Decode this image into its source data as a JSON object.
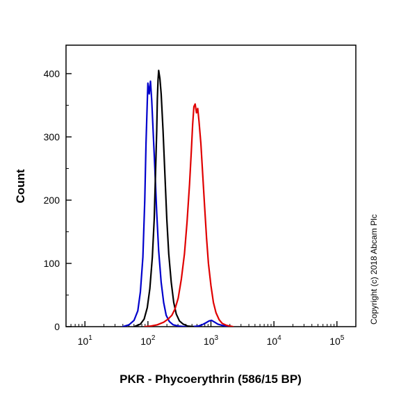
{
  "copyright": "Copyright (c) 2018 Abcam Plc",
  "chart_data": {
    "type": "line",
    "title": "",
    "xlabel": "PKR - Phycoerythrin (586/15 BP)",
    "ylabel": "Count",
    "x_scale": "log10",
    "xlim_log": [
      0.7,
      5.3
    ],
    "ylim": [
      0,
      445
    ],
    "yticks": [
      0,
      100,
      200,
      300,
      400
    ],
    "y_minor_step": 50,
    "xticks_exponents": [
      1,
      2,
      3,
      4,
      5
    ],
    "grid": false,
    "legend": "none",
    "series": [
      {
        "name": "blue",
        "color": "#0000cc",
        "points": [
          [
            1.6,
            0
          ],
          [
            1.7,
            3
          ],
          [
            1.78,
            10
          ],
          [
            1.84,
            25
          ],
          [
            1.88,
            55
          ],
          [
            1.92,
            110
          ],
          [
            1.95,
            200
          ],
          [
            1.97,
            290
          ],
          [
            1.99,
            355
          ],
          [
            2.0,
            385
          ],
          [
            2.02,
            368
          ],
          [
            2.04,
            388
          ],
          [
            2.06,
            358
          ],
          [
            2.08,
            315
          ],
          [
            2.11,
            250
          ],
          [
            2.14,
            180
          ],
          [
            2.17,
            120
          ],
          [
            2.21,
            70
          ],
          [
            2.25,
            38
          ],
          [
            2.29,
            18
          ],
          [
            2.34,
            8
          ],
          [
            2.4,
            3
          ],
          [
            2.48,
            1
          ],
          [
            2.58,
            0
          ],
          [
            2.7,
            0
          ],
          [
            2.8,
            1
          ],
          [
            2.86,
            3
          ],
          [
            2.92,
            6
          ],
          [
            2.97,
            9
          ],
          [
            3.01,
            10
          ],
          [
            3.06,
            7
          ],
          [
            3.11,
            4
          ],
          [
            3.18,
            2
          ],
          [
            3.28,
            0
          ]
        ]
      },
      {
        "name": "black",
        "color": "#000000",
        "points": [
          [
            1.78,
            0
          ],
          [
            1.88,
            4
          ],
          [
            1.94,
            12
          ],
          [
            1.99,
            30
          ],
          [
            2.03,
            60
          ],
          [
            2.07,
            110
          ],
          [
            2.1,
            170
          ],
          [
            2.12,
            240
          ],
          [
            2.14,
            310
          ],
          [
            2.15,
            360
          ],
          [
            2.16,
            390
          ],
          [
            2.17,
            405
          ],
          [
            2.19,
            392
          ],
          [
            2.21,
            368
          ],
          [
            2.24,
            310
          ],
          [
            2.27,
            240
          ],
          [
            2.3,
            170
          ],
          [
            2.33,
            115
          ],
          [
            2.37,
            70
          ],
          [
            2.41,
            38
          ],
          [
            2.45,
            20
          ],
          [
            2.5,
            9
          ],
          [
            2.56,
            4
          ],
          [
            2.63,
            1
          ],
          [
            2.72,
            0
          ]
        ]
      },
      {
        "name": "red",
        "color": "#e00000",
        "points": [
          [
            1.95,
            0
          ],
          [
            2.05,
            1
          ],
          [
            2.15,
            3
          ],
          [
            2.25,
            7
          ],
          [
            2.32,
            12
          ],
          [
            2.38,
            18
          ],
          [
            2.43,
            28
          ],
          [
            2.48,
            45
          ],
          [
            2.53,
            75
          ],
          [
            2.58,
            115
          ],
          [
            2.62,
            165
          ],
          [
            2.66,
            225
          ],
          [
            2.69,
            280
          ],
          [
            2.71,
            320
          ],
          [
            2.73,
            348
          ],
          [
            2.75,
            352
          ],
          [
            2.77,
            338
          ],
          [
            2.79,
            345
          ],
          [
            2.81,
            325
          ],
          [
            2.84,
            290
          ],
          [
            2.87,
            240
          ],
          [
            2.9,
            190
          ],
          [
            2.93,
            140
          ],
          [
            2.96,
            100
          ],
          [
            3.0,
            65
          ],
          [
            3.04,
            38
          ],
          [
            3.08,
            22
          ],
          [
            3.13,
            11
          ],
          [
            3.18,
            5
          ],
          [
            3.25,
            2
          ],
          [
            3.35,
            0
          ]
        ]
      }
    ]
  }
}
